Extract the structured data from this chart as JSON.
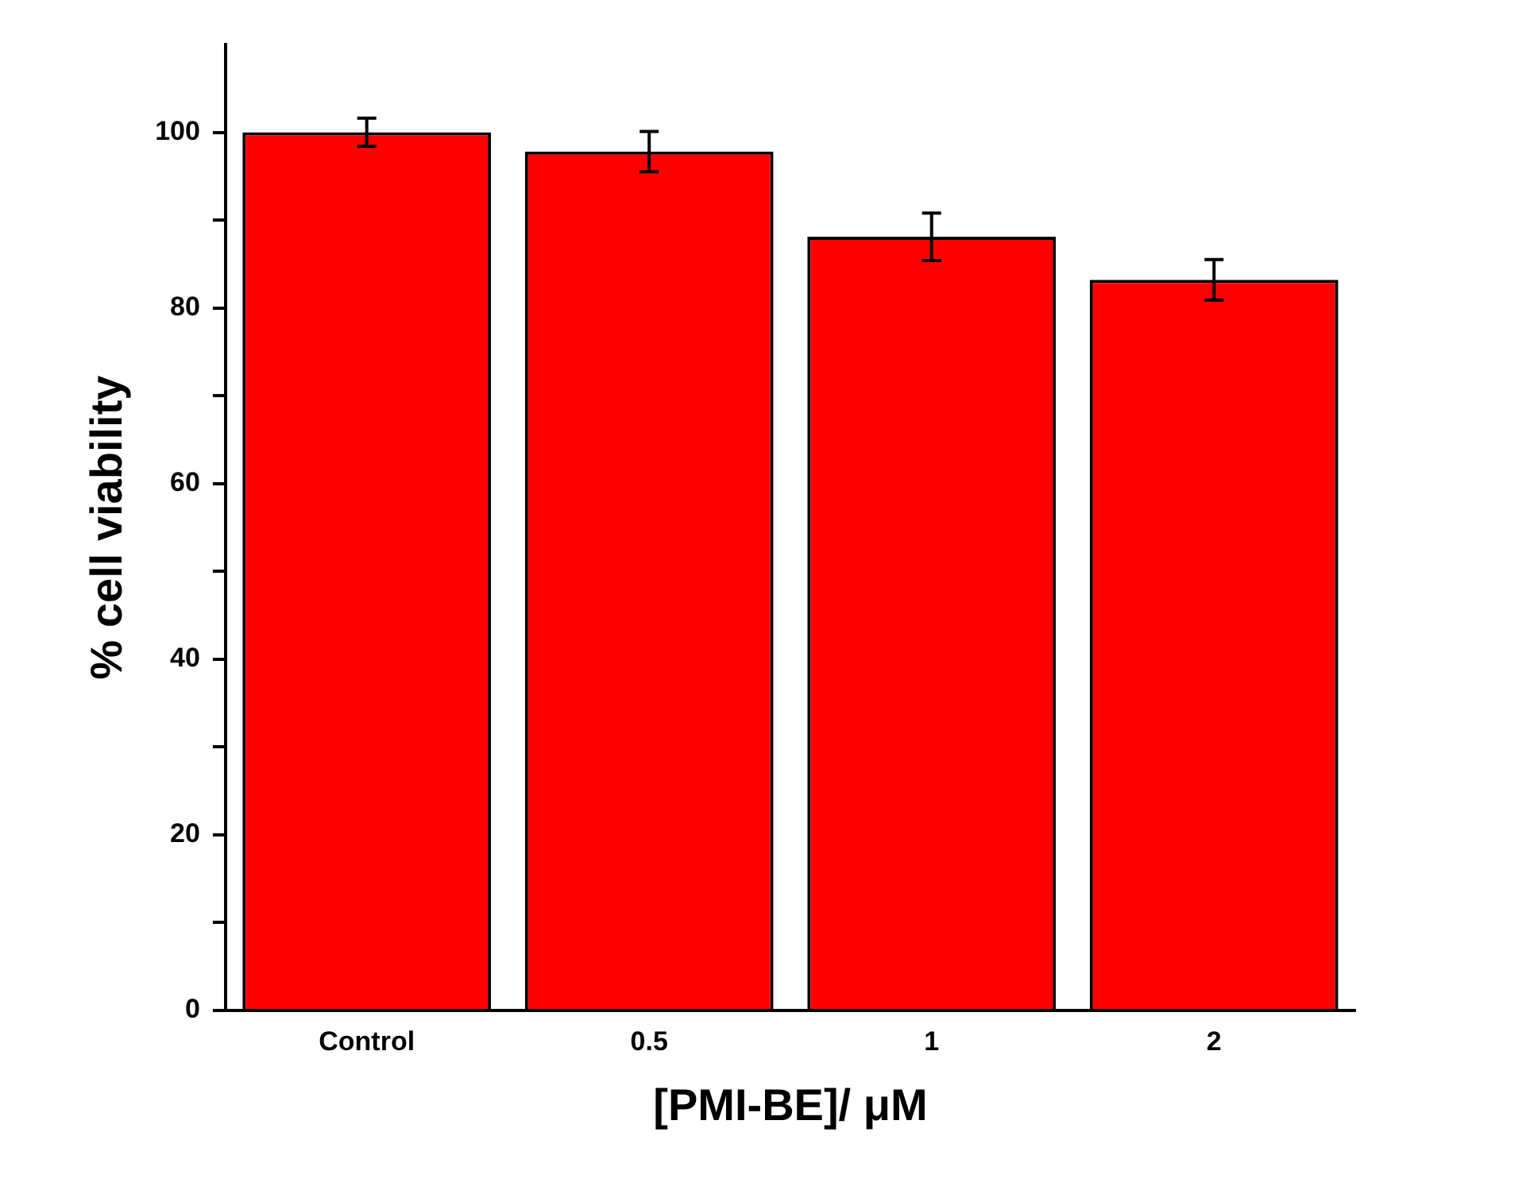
{
  "chart_data": {
    "type": "bar",
    "xlabel": "[PMI-BE]/ μM",
    "ylabel": "% cell viability",
    "categories": [
      "Control",
      "0.5",
      "1",
      "2"
    ],
    "values": [
      100,
      97.8,
      88.1,
      83.2
    ],
    "errors": [
      1.6,
      2.3,
      2.7,
      2.3
    ],
    "color": "#ff0000",
    "ylim": [
      0,
      110
    ],
    "yticks": [
      0,
      {
        "value": 10,
        "label": null
      },
      20,
      {
        "value": 30,
        "label": null
      },
      40,
      {
        "value": 50,
        "label": null
      },
      60,
      {
        "value": 70,
        "label": null
      },
      80,
      {
        "value": 90,
        "label": null
      },
      100
    ],
    "grid": false,
    "legend": false
  }
}
